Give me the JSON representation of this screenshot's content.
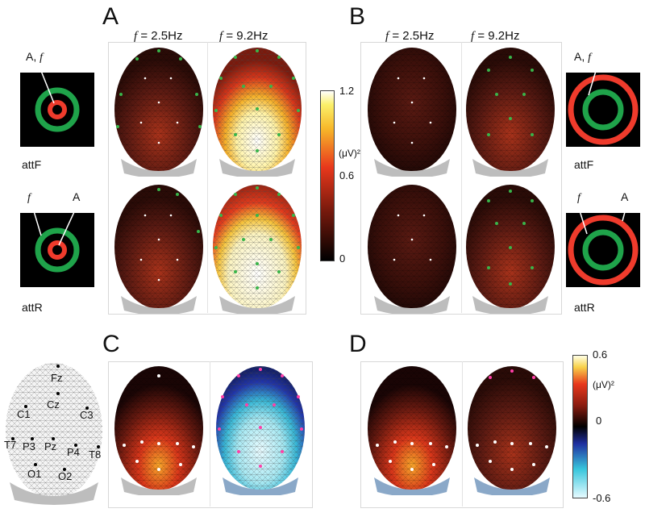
{
  "panels": {
    "A": "A",
    "B": "B",
    "C": "C",
    "D": "D"
  },
  "freq_labels": {
    "f1": "f = 2.5Hz",
    "f2": "f = 9.2Hz"
  },
  "freq_symbol": "f",
  "freq_values": {
    "f1": " = 2.5Hz",
    "f2": " = 9.2Hz"
  },
  "conditions": {
    "attF": "attF",
    "attR": "attR"
  },
  "stimulus_labels": {
    "A": "A",
    "f": "f",
    "A_f": "A, f"
  },
  "colorbar_top": {
    "max": "1.2",
    "mid": "0.6",
    "min": "0",
    "unit": "(μV)²"
  },
  "colorbar_bottom": {
    "max": "0.6",
    "mid": "0",
    "min": "-0.6",
    "unit": "(μV)²"
  },
  "electrodes": [
    "Fz",
    "Cz",
    "C1",
    "C3",
    "T7",
    "P3",
    "Pz",
    "P4",
    "T8",
    "O1",
    "O2"
  ],
  "colors": {
    "ring_green": "#1fa34a",
    "ring_red": "#ef3b2c",
    "stim_background": "#000000",
    "dot_green": "#39b54a",
    "dot_pink": "#ff3fa8"
  }
}
